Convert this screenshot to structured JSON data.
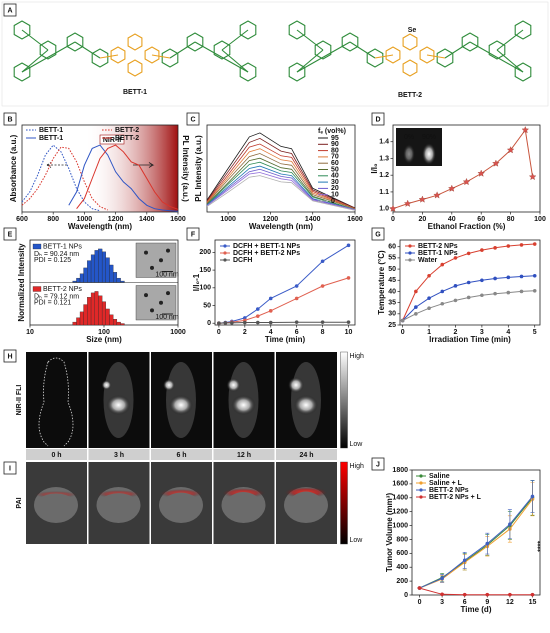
{
  "letters": [
    "A",
    "B",
    "C",
    "D",
    "E",
    "F",
    "G",
    "H",
    "I",
    "J"
  ],
  "structures": {
    "names": [
      "BETT-1",
      "BETT-2"
    ],
    "highlight_atom": "Se"
  },
  "imaging": {
    "times": [
      "0 h",
      "3 h",
      "6 h",
      "12 h",
      "24 h"
    ],
    "rows": [
      "NIR-II FLI",
      "PAI"
    ],
    "scale_high": "High",
    "scale_low": "Low"
  },
  "chart_data": [
    {
      "type": "line",
      "x": [
        600,
        650,
        700,
        750,
        800,
        850,
        900,
        950,
        1000,
        1050,
        1100,
        1150,
        1200,
        1250,
        1300,
        1350,
        1400,
        1450,
        1500,
        1550,
        1600
      ],
      "series": [
        {
          "name": "BETT-1",
          "color": "#2f55c4",
          "linestyle": "dotted",
          "values": [
            0.15,
            0.3,
            0.55,
            0.85,
            1.0,
            0.9,
            0.65,
            0.35,
            0.15,
            0.05,
            0.02,
            null,
            null,
            null,
            null,
            null,
            null,
            null,
            null,
            null,
            null
          ]
        },
        {
          "name": "BETT-2",
          "color": "#d9342b",
          "linestyle": "dotted",
          "values": [
            0.1,
            0.2,
            0.35,
            0.55,
            0.8,
            0.97,
            0.95,
            0.75,
            0.45,
            0.2,
            0.08,
            0.03,
            null,
            null,
            null,
            null,
            null,
            null,
            null,
            null,
            null
          ]
        },
        {
          "name": "BETT-1",
          "color": "#2f55c4",
          "linestyle": "solid",
          "values": [
            null,
            null,
            null,
            null,
            null,
            null,
            0.1,
            0.3,
            0.7,
            0.95,
            1.0,
            0.85,
            0.6,
            0.45,
            0.35,
            0.2,
            0.1,
            0.05,
            0.03,
            0.02,
            0.01
          ]
        },
        {
          "name": "BETT-2",
          "color": "#d9342b",
          "linestyle": "solid",
          "values": [
            null,
            null,
            null,
            null,
            null,
            null,
            null,
            0.05,
            0.2,
            0.5,
            0.8,
            0.95,
            1.0,
            0.9,
            0.75,
            0.7,
            0.5,
            0.3,
            0.15,
            0.08,
            0.04
          ]
        }
      ],
      "xlim": [
        600,
        1600
      ],
      "xticks": [
        600,
        800,
        1000,
        1200,
        1400,
        1600
      ],
      "ylim": [
        0,
        1.3
      ],
      "yticks": [],
      "xlabel": "Wavelength (nm)",
      "ylabel": "Absorbance (a.u.)",
      "y2label": "PL Intensity (a.u.)",
      "highlight": {
        "label": "NIR-II",
        "range": [
          1000,
          1600
        ]
      }
    },
    {
      "type": "line",
      "x": [
        900,
        1000,
        1100,
        1150,
        1250,
        1300,
        1400,
        1600
      ],
      "legend_title": "fₑ (vol%)",
      "series": [
        {
          "name": "95",
          "color": "#1a1a1a",
          "values": [
            0.15,
            0.55,
            0.95,
            1.0,
            0.83,
            0.8,
            0.3,
            0.05
          ]
        },
        {
          "name": "90",
          "color": "#7b1e1e",
          "values": [
            0.14,
            0.51,
            0.88,
            0.93,
            0.77,
            0.74,
            0.28,
            0.05
          ]
        },
        {
          "name": "80",
          "color": "#c0392b",
          "values": [
            0.13,
            0.47,
            0.82,
            0.86,
            0.71,
            0.69,
            0.26,
            0.04
          ]
        },
        {
          "name": "70",
          "color": "#e07b39",
          "values": [
            0.12,
            0.44,
            0.76,
            0.8,
            0.66,
            0.64,
            0.24,
            0.04
          ]
        },
        {
          "name": "60",
          "color": "#8e6b3e",
          "values": [
            0.11,
            0.41,
            0.7,
            0.74,
            0.61,
            0.59,
            0.22,
            0.04
          ]
        },
        {
          "name": "50",
          "color": "#556b2f",
          "values": [
            0.1,
            0.37,
            0.65,
            0.68,
            0.56,
            0.54,
            0.2,
            0.03
          ]
        },
        {
          "name": "40",
          "color": "#2e8b57",
          "values": [
            0.09,
            0.35,
            0.6,
            0.63,
            0.52,
            0.5,
            0.19,
            0.03
          ]
        },
        {
          "name": "30",
          "color": "#1f77b4",
          "values": [
            0.09,
            0.32,
            0.55,
            0.58,
            0.48,
            0.46,
            0.17,
            0.03
          ]
        },
        {
          "name": "20",
          "color": "#6a5acd",
          "values": [
            0.08,
            0.3,
            0.51,
            0.54,
            0.45,
            0.43,
            0.16,
            0.03
          ]
        },
        {
          "name": "10",
          "color": "#9370db",
          "values": [
            0.08,
            0.28,
            0.48,
            0.5,
            0.42,
            0.4,
            0.15,
            0.03
          ]
        },
        {
          "name": "0",
          "color": "#b0b0b0",
          "values": [
            0.07,
            0.25,
            0.44,
            0.46,
            0.38,
            0.37,
            0.14,
            0.02
          ]
        }
      ],
      "xlim": [
        900,
        1600
      ],
      "xticks": [
        1000,
        1200,
        1400,
        1600
      ],
      "ylim": [
        0,
        1.1
      ],
      "yticks": [],
      "xlabel": "Wavelength (nm)",
      "ylabel": "PL Intensity (a.u.)"
    },
    {
      "type": "line",
      "marker": "star",
      "x": [
        0,
        10,
        20,
        30,
        40,
        50,
        60,
        70,
        80,
        90,
        95
      ],
      "series": [
        {
          "color": "#c8553d",
          "values": [
            1.0,
            1.03,
            1.055,
            1.08,
            1.12,
            1.16,
            1.21,
            1.27,
            1.35,
            1.47,
            1.19
          ]
        }
      ],
      "xlim": [
        0,
        100
      ],
      "xticks": [
        0,
        20,
        40,
        60,
        80,
        100
      ],
      "ylim": [
        0.98,
        1.5
      ],
      "yticks": [
        {
          "value": 1,
          "label": "1.0"
        },
        1.1,
        1.2,
        1.3,
        1.4
      ],
      "xlabel": "Ethanol Fraction (%)",
      "ylabel": "I/I₀",
      "inset": {
        "labels": [
          "0%",
          "90%"
        ]
      }
    },
    {
      "type": "bar",
      "log_x": true,
      "x": [
        40,
        45,
        50,
        56,
        63,
        71,
        79,
        89,
        100,
        112,
        126,
        141,
        158,
        178
      ],
      "series": [
        {
          "name": "BETT-1 NPs",
          "color": "#2456c8",
          "annotations": [
            "Dₕ = 90.24 nm",
            "PDI = 0.125"
          ],
          "values": [
            1,
            3,
            6,
            10,
            15,
            19,
            22,
            23,
            21,
            17,
            12,
            7,
            3,
            1
          ]
        },
        {
          "name": "BETT-2 NPs",
          "color": "#e02828",
          "annotations": [
            "Dₕ = 79.12 nm",
            "PDI = 0.121"
          ],
          "values": [
            2,
            5,
            9,
            14,
            19,
            22,
            23,
            20,
            16,
            11,
            7,
            4,
            2,
            1
          ]
        }
      ],
      "xlim": [
        10,
        1000
      ],
      "xticks": [
        10,
        100,
        1000
      ],
      "ylim": [
        0,
        25
      ],
      "yticks": [],
      "xlabel": "Size (nm)",
      "ylabel": "Normalized Intensity",
      "scale_bar": "100 nm"
    },
    {
      "type": "line",
      "marker": "circle",
      "x": [
        0,
        0.5,
        1,
        2,
        3,
        4,
        6,
        8,
        10
      ],
      "series": [
        {
          "name": "DCFH + BETT-1 NPs",
          "color": "#3a5bc7",
          "values": [
            0,
            2,
            5,
            15,
            40,
            70,
            105,
            175,
            220
          ]
        },
        {
          "name": "DCFH + BETT-2 NPs",
          "color": "#e06050",
          "values": [
            0,
            1,
            3,
            8,
            20,
            35,
            70,
            105,
            128
          ]
        },
        {
          "name": "DCFH",
          "color": "#555555",
          "values": [
            0,
            1,
            1,
            2,
            2,
            2,
            3,
            3,
            3
          ]
        }
      ],
      "xlim": [
        -0.3,
        10.5
      ],
      "xticks": [
        0,
        2,
        4,
        6,
        8,
        10
      ],
      "ylim": [
        -5,
        235
      ],
      "yticks": [
        0,
        50,
        100,
        150,
        200
      ],
      "xlabel": "Time (min)",
      "ylabel": "I/I₀-1"
    },
    {
      "type": "line",
      "marker": "circle",
      "x": [
        0,
        0.5,
        1,
        1.5,
        2,
        2.5,
        3,
        3.5,
        4,
        4.5,
        5
      ],
      "series": [
        {
          "name": "BETT-2 NPs",
          "color": "#d84030",
          "values": [
            27,
            40,
            47,
            52,
            55,
            57,
            58.5,
            59.5,
            60.3,
            60.8,
            61.2
          ]
        },
        {
          "name": "BETT-1 NPs",
          "color": "#3050c0",
          "values": [
            27,
            33,
            37,
            40,
            42.5,
            44,
            45,
            45.8,
            46.3,
            46.7,
            47
          ]
        },
        {
          "name": "Water",
          "color": "#888888",
          "values": [
            27,
            30,
            32.5,
            34.5,
            36,
            37.3,
            38.3,
            39,
            39.5,
            40,
            40.3
          ]
        }
      ],
      "xlim": [
        -0.1,
        5.2
      ],
      "xticks": [
        0,
        1,
        2,
        3,
        4,
        5
      ],
      "ylim": [
        25,
        63
      ],
      "yticks": [
        25,
        30,
        35,
        40,
        45,
        50,
        55,
        60
      ],
      "xlabel": "Irradiation Time (min)",
      "ylabel": "Temperature (°C)"
    },
    {
      "type": "line",
      "marker": "circle",
      "x": [
        0,
        3,
        6,
        9,
        12,
        15
      ],
      "series": [
        {
          "name": "Saline",
          "color": "#3a8a3a",
          "values": [
            100,
            250,
            480,
            720,
            1000,
            1400
          ],
          "errors": [
            10,
            60,
            120,
            150,
            200,
            250
          ]
        },
        {
          "name": "Saline + L",
          "color": "#f0a030",
          "values": [
            100,
            230,
            470,
            700,
            950,
            1380
          ],
          "errors": [
            10,
            50,
            110,
            140,
            190,
            240
          ]
        },
        {
          "name": "BETT-2 NPs",
          "color": "#4060c0",
          "values": [
            100,
            240,
            500,
            740,
            1020,
            1420
          ],
          "errors": [
            10,
            55,
            115,
            150,
            210,
            230
          ]
        },
        {
          "name": "BETT-2 NPs + L",
          "color": "#d03030",
          "values": [
            100,
            10,
            5,
            5,
            5,
            5
          ],
          "errors": [
            10,
            5,
            5,
            5,
            5,
            5
          ]
        }
      ],
      "xlim": [
        -1,
        16
      ],
      "xticks": [
        0,
        3,
        6,
        9,
        12,
        15
      ],
      "ylim": [
        0,
        1800
      ],
      "yticks": [
        0,
        200,
        400,
        600,
        800,
        1000,
        1200,
        1400,
        1600,
        1800
      ],
      "xlabel": "Time (d)",
      "ylabel": "Tumor Volume (mm³)",
      "annotation": "****"
    }
  ]
}
